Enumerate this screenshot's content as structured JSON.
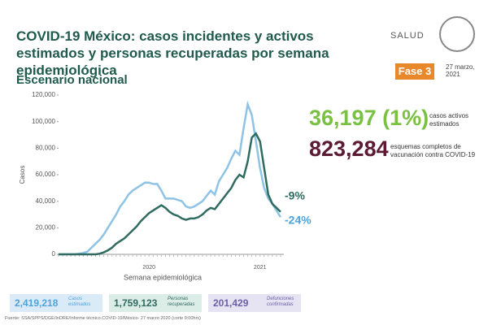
{
  "header": {
    "title": "COVID-19 México: casos incidentes y activos estimados y personas recuperadas por semana epidemiológica",
    "logo": "SALUD",
    "phase": "Fase 3",
    "date": "27 marzo, 2021"
  },
  "subtitle": "Escenario nacional",
  "chart_data": {
    "type": "line",
    "ylabel": "Casos",
    "xlabel": "Semana epidemiológica",
    "categories": [
      null,
      null,
      null,
      null,
      null,
      null,
      null,
      null,
      null,
      null,
      null,
      null,
      null,
      null,
      null,
      null,
      null,
      null,
      null,
      null,
      null,
      null,
      "2020",
      null,
      null,
      null,
      null,
      null,
      null,
      null,
      null,
      null,
      null,
      null,
      null,
      null,
      null,
      null,
      null,
      null,
      null,
      null,
      null,
      null,
      null,
      null,
      null,
      null,
      null,
      "2021",
      null,
      null,
      null,
      null,
      null
    ],
    "series": [
      {
        "color": "#8ec3e6",
        "values": [
          0,
          0,
          0,
          0,
          0,
          500,
          1000,
          2000,
          5000,
          8000,
          11000,
          15000,
          20000,
          25000,
          30000,
          36000,
          40000,
          45000,
          48000,
          50000,
          52000,
          54000,
          54000,
          53000,
          53000,
          48000,
          42000,
          42000,
          42000,
          41000,
          40000,
          36000,
          35000,
          36000,
          38000,
          40000,
          44000,
          48000,
          45000,
          55000,
          60000,
          65000,
          72000,
          78000,
          75000,
          95000,
          113000,
          105000,
          85000,
          65000,
          50000,
          42000,
          38000,
          33000,
          28000
        ]
      },
      {
        "color": "#2f6b5f",
        "values": [
          0,
          0,
          0,
          0,
          0,
          0,
          0,
          0,
          0,
          0,
          500,
          1500,
          3000,
          5000,
          8000,
          10000,
          12000,
          15000,
          18000,
          21000,
          25000,
          28000,
          31000,
          33000,
          35000,
          37000,
          35000,
          32000,
          30000,
          29000,
          27000,
          26000,
          27000,
          27000,
          28000,
          30000,
          33000,
          35000,
          34000,
          38000,
          42000,
          46000,
          50000,
          56000,
          60000,
          58000,
          70000,
          88000,
          91000,
          85000,
          65000,
          45000,
          38000,
          35000,
          32000
        ]
      }
    ],
    "ylim": [
      0,
      120000
    ],
    "yticks": [
      0,
      {
        "value": 20000,
        "label": "20,000"
      },
      {
        "value": 40000,
        "label": "40,000"
      },
      {
        "value": 60000,
        "label": "60,000"
      },
      {
        "value": 80000,
        "label": "80,000"
      },
      {
        "value": 100000,
        "label": "100,000"
      },
      {
        "value": 120000,
        "label": "120,000"
      }
    ],
    "annotations": [
      {
        "text": "-9%",
        "color": "#2f6b5f"
      },
      {
        "text": "-24%",
        "color": "#4da3dc"
      }
    ]
  },
  "stats": [
    {
      "value": "36,197 (1%)",
      "label": "casos activos estimados",
      "color": "#7ac143"
    },
    {
      "value": "823,284",
      "label": "esquemas completos de vacunación contra COVID-19",
      "color": "#5c1a33"
    }
  ],
  "summary": [
    {
      "value": "2,419,218",
      "label": "Casos estimados",
      "color": "#dbeaf7",
      "text": "#4da3dc"
    },
    {
      "value": "1,759,123",
      "label": "Personas recuperadas",
      "color": "#dcece6",
      "text": "#2f6b5f"
    },
    {
      "value": "201,429",
      "label": "Defunciones confirmadas",
      "color": "#e6e3f3",
      "text": "#6b5fa8"
    }
  ],
  "footer": "Fuente: SSA/SPPS/DGE/InDRE/Informe técnico.COVID-19/México- 27 marzo 2020 (corte 9:00hrs)"
}
